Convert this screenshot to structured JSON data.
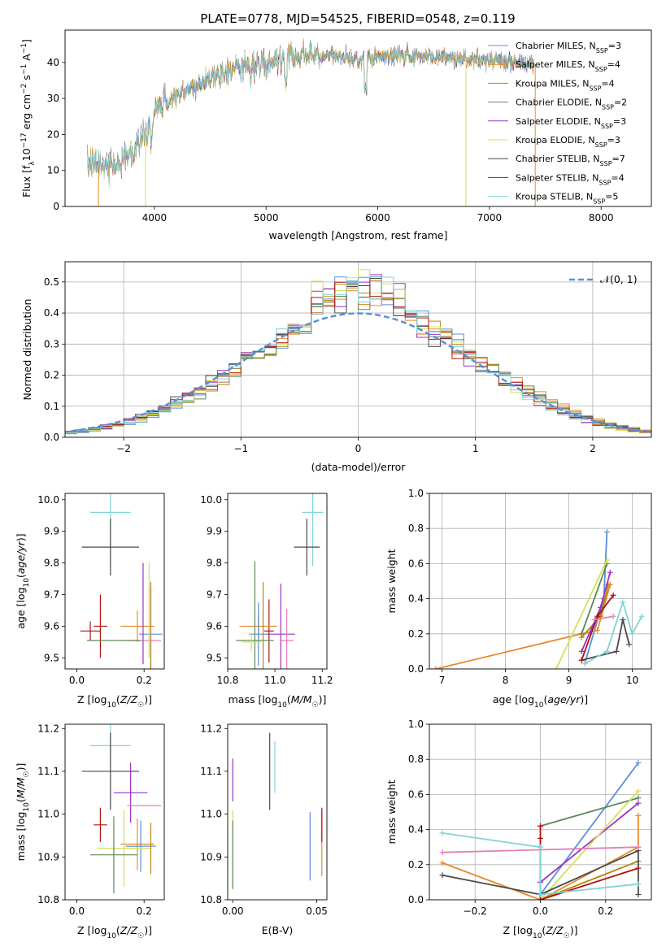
{
  "figure_title": "PLATE=0778, MJD=54525, FIBERID=0548, z=0.119",
  "colors": {
    "Chabrier MILES": "#5b8fd9",
    "Salpeter MILES": "#e8892a",
    "Kroupa MILES": "#b8860b",
    "Chabrier ELODIE": "#5a8a5a",
    "Salpeter ELODIE": "#9b30c8",
    "Kroupa ELODIE": "#d4e05a",
    "Chabrier STELIB": "#4a4a4a",
    "Salpeter STELIB": "#b01010",
    "Kroupa STELIB": "#7fd4d8",
    "pink": "#e47fb8",
    "normal": "#5b8fd9"
  },
  "chart_data": [
    {
      "id": "spectrum",
      "type": "line",
      "xlabel": "wavelength [Angstrom, rest frame]",
      "ylabel": "Flux [f_λ10^-17 erg cm^-2 s^-1 A^-1]",
      "xlim": [
        3200,
        8450
      ],
      "ylim": [
        0,
        49
      ],
      "xticks": [
        4000,
        5000,
        6000,
        7000,
        8000
      ],
      "yticks": [
        0,
        10,
        20,
        30,
        40
      ],
      "grid": false,
      "legend_position": "top-right",
      "legend": [
        {
          "label": "Chabrier MILES, N",
          "sub": "SSP",
          "suffix": "=3"
        },
        {
          "label": "Salpeter MILES, N",
          "sub": "SSP",
          "suffix": "=4"
        },
        {
          "label": "Kroupa MILES, N",
          "sub": "SSP",
          "suffix": "=4"
        },
        {
          "label": "Chabrier ELODIE, N",
          "sub": "SSP",
          "suffix": "=2"
        },
        {
          "label": "Salpeter ELODIE, N",
          "sub": "SSP",
          "suffix": "=3"
        },
        {
          "label": "Kroupa ELODIE, N",
          "sub": "SSP",
          "suffix": "=3"
        },
        {
          "label": "Chabrier STELIB, N",
          "sub": "SSP",
          "suffix": "=7"
        },
        {
          "label": "Salpeter STELIB, N",
          "sub": "SSP",
          "suffix": "=4"
        },
        {
          "label": "Kroupa STELIB, N",
          "sub": "SSP",
          "suffix": "=5"
        }
      ],
      "continuum": {
        "x": [
          3400,
          3600,
          3800,
          3900,
          4000,
          4100,
          4300,
          4500,
          4800,
          5000,
          5200,
          5500,
          5800,
          6000,
          6200,
          6500,
          6800,
          7000,
          7200,
          7400
        ],
        "y": [
          11,
          11.5,
          15,
          20,
          26,
          29,
          32,
          36,
          39,
          40,
          42,
          42,
          41,
          41.5,
          42,
          41.5,
          41,
          40.5,
          40,
          39.5
        ]
      },
      "drops": [
        {
          "series": "Salpeter MILES",
          "x": 3500
        },
        {
          "series": "Kroupa ELODIE",
          "x": 3920
        },
        {
          "series": "Kroupa ELODIE",
          "x": 6790
        },
        {
          "series": "Salpeter MILES",
          "x": 7410
        }
      ]
    },
    {
      "id": "residuals",
      "type": "histogram",
      "xlabel": "(data-model)/error",
      "ylabel": "Normed distribution",
      "xlim": [
        -2.5,
        2.5
      ],
      "ylim": [
        0,
        0.565
      ],
      "xticks": [
        -2,
        -1,
        0,
        1,
        2
      ],
      "yticks": [
        0.0,
        0.1,
        0.2,
        0.3,
        0.4,
        0.5
      ],
      "grid": true,
      "legend_position": "top-right",
      "legend": "𝒩(0, 1)",
      "bin_width": 0.1
    },
    {
      "id": "age_vs_Z",
      "type": "errorbar",
      "xlabel": "Z [log₁₀(Z/Z☉)]",
      "ylabel": "age  [log₁₀(age/yr)]",
      "xlim": [
        -0.035,
        0.26
      ],
      "ylim": [
        9.465,
        10.02
      ],
      "xticks": [
        0.0,
        0.2
      ],
      "yticks": [
        9.5,
        9.6,
        9.7,
        9.8,
        9.9,
        10.0
      ],
      "points": [
        {
          "series": "Kroupa STELIB",
          "x": 0.1,
          "xerr": 0.06,
          "y": 9.96,
          "yerr": 0.17
        },
        {
          "series": "Chabrier STELIB",
          "x": 0.1,
          "xerr": 0.085,
          "y": 9.85,
          "yerr": 0.09
        },
        {
          "series": "Salpeter STELIB",
          "x": 0.07,
          "xerr": 0.02,
          "y": 9.6,
          "yerr": 0.1
        },
        {
          "series": "Salpeter MILES",
          "x": 0.18,
          "xerr": 0.05,
          "y": 9.6,
          "yerr": 0.05
        },
        {
          "series": "Salpeter STELIB",
          "x": 0.04,
          "xerr": 0.03,
          "y": 9.585,
          "yerr": 0.03
        },
        {
          "series": "Chabrier MILES",
          "x": 0.22,
          "xerr": 0.035,
          "y": 9.575,
          "yerr": 0.15
        },
        {
          "series": "pink",
          "x": 0.2,
          "xerr": 0.05,
          "y": 9.555,
          "yerr": 0.0
        },
        {
          "series": "Chabrier ELODIE",
          "x": 0.11,
          "xerr": 0.08,
          "y": 9.555,
          "yerr": 0.0
        },
        {
          "series": "Salpeter ELODIE",
          "x": 0.197,
          "xerr": 0.0,
          "y": 9.64,
          "yerr": 0.16
        },
        {
          "series": "Kroupa ELODIE",
          "x": 0.215,
          "xerr": 0.0,
          "y": 9.65,
          "yerr": 0.15
        },
        {
          "series": "Kroupa MILES",
          "x": 0.22,
          "xerr": 0.0,
          "y": 9.6,
          "yerr": 0.14
        }
      ]
    },
    {
      "id": "age_vs_mass",
      "type": "errorbar",
      "xlabel": "mass [log₁₀(M/M☉)]",
      "ylabel": "",
      "xlim": [
        10.8,
        11.22
      ],
      "ylim": [
        9.465,
        10.02
      ],
      "xticks": [
        10.8,
        11.0,
        11.2
      ],
      "yticks": [
        9.5,
        9.6,
        9.7,
        9.8,
        9.9,
        10.0
      ],
      "points": [
        {
          "series": "Kroupa STELIB",
          "x": 11.16,
          "xerr": 0.045,
          "y": 9.96,
          "yerr": 0.17
        },
        {
          "series": "Chabrier STELIB",
          "x": 11.135,
          "xerr": 0.055,
          "y": 9.85,
          "yerr": 0.09
        },
        {
          "series": "Salpeter STELIB",
          "x": 10.975,
          "xerr": 0.02,
          "y": 9.585,
          "yerr": 0.1
        },
        {
          "series": "Salpeter MILES",
          "x": 10.93,
          "xerr": 0.08,
          "y": 9.6,
          "yerr": 0.04
        },
        {
          "series": "Chabrier MILES",
          "x": 10.93,
          "xerr": 0.04,
          "y": 9.575,
          "yerr": 0.1
        },
        {
          "series": "Salpeter ELODIE",
          "x": 11.025,
          "xerr": 0.06,
          "y": 9.575,
          "yerr": 0.16
        },
        {
          "series": "pink",
          "x": 11.05,
          "xerr": 0.03,
          "y": 9.555,
          "yerr": 0.1
        },
        {
          "series": "Chabrier ELODIE",
          "x": 10.915,
          "xerr": 0.08,
          "y": 9.555,
          "yerr": 0.25
        },
        {
          "series": "Kroupa ELODIE",
          "x": 10.9,
          "xerr": 0.04,
          "y": 9.55,
          "yerr": 0.03
        },
        {
          "series": "Kroupa MILES",
          "x": 10.95,
          "xerr": 0.0,
          "y": 9.6,
          "yerr": 0.14
        }
      ]
    },
    {
      "id": "weight_vs_age",
      "type": "line",
      "xlabel": "age  [log₁₀(age/yr)]",
      "ylabel": "mass weight",
      "xlim": [
        6.8,
        10.3
      ],
      "ylim": [
        0,
        1.0
      ],
      "xticks": [
        7,
        8,
        9,
        10
      ],
      "yticks": [
        0.0,
        0.2,
        0.4,
        0.6,
        0.8,
        1.0
      ],
      "grid": true,
      "series": [
        {
          "name": "Chabrier MILES",
          "x": [
            9.25,
            9.55,
            9.6
          ],
          "y": [
            0.03,
            0.4,
            0.78
          ]
        },
        {
          "name": "Salpeter MILES",
          "x": [
            6.9,
            9.2,
            9.45,
            9.65
          ],
          "y": [
            0.0,
            0.2,
            0.22,
            0.48
          ]
        },
        {
          "name": "Kroupa MILES",
          "x": [
            9.2,
            9.5,
            9.62
          ],
          "y": [
            0.18,
            0.3,
            0.48
          ]
        },
        {
          "name": "Chabrier ELODIE",
          "x": [
            9.2,
            9.6
          ],
          "y": [
            0.2,
            0.6
          ]
        },
        {
          "name": "Salpeter ELODIE",
          "x": [
            9.2,
            9.5,
            9.65
          ],
          "y": [
            0.1,
            0.35,
            0.55
          ]
        },
        {
          "name": "Kroupa ELODIE",
          "x": [
            8.8,
            9.6
          ],
          "y": [
            0.0,
            0.62
          ]
        },
        {
          "name": "Chabrier STELIB",
          "x": [
            9.2,
            9.75,
            9.85,
            9.95
          ],
          "y": [
            0.05,
            0.1,
            0.28,
            0.14
          ]
        },
        {
          "name": "Salpeter STELIB",
          "x": [
            9.2,
            9.45,
            9.7
          ],
          "y": [
            0.05,
            0.3,
            0.42
          ]
        },
        {
          "name": "Kroupa STELIB",
          "x": [
            9.25,
            9.6,
            9.85,
            10.0,
            10.15
          ],
          "y": [
            0.03,
            0.1,
            0.38,
            0.2,
            0.3
          ]
        },
        {
          "name": "pink",
          "x": [
            9.4,
            9.7
          ],
          "y": [
            0.28,
            0.3
          ]
        }
      ]
    },
    {
      "id": "mass_vs_Z",
      "type": "errorbar",
      "xlabel": "Z [log₁₀(Z/Z☉)]",
      "ylabel": "mass [log₁₀(M/M☉)]",
      "xlim": [
        -0.035,
        0.26
      ],
      "ylim": [
        10.8,
        11.21
      ],
      "xticks": [
        0.0,
        0.2
      ],
      "yticks": [
        10.8,
        10.9,
        11.0,
        11.1,
        11.2
      ],
      "points": [
        {
          "series": "Kroupa STELIB",
          "x": 0.1,
          "xerr": 0.06,
          "y": 11.16,
          "yerr": 0.05
        },
        {
          "series": "Chabrier STELIB",
          "x": 0.1,
          "xerr": 0.085,
          "y": 11.1,
          "yerr": 0.09
        },
        {
          "series": "Salpeter ELODIE",
          "x": 0.16,
          "xerr": 0.05,
          "y": 11.05,
          "yerr": 0.07
        },
        {
          "series": "pink",
          "x": 0.2,
          "xerr": 0.05,
          "y": 11.02,
          "yerr": 0.0
        },
        {
          "series": "Salpeter STELIB",
          "x": 0.07,
          "xerr": 0.02,
          "y": 10.975,
          "yerr": 0.04
        },
        {
          "series": "Salpeter MILES",
          "x": 0.18,
          "xerr": 0.05,
          "y": 10.93,
          "yerr": 0.06
        },
        {
          "series": "Chabrier MILES",
          "x": 0.19,
          "xerr": 0.045,
          "y": 10.925,
          "yerr": 0.06
        },
        {
          "series": "Kroupa ELODIE",
          "x": 0.14,
          "xerr": 0.08,
          "y": 10.92,
          "yerr": 0.09
        },
        {
          "series": "Chabrier ELODIE",
          "x": 0.11,
          "xerr": 0.07,
          "y": 10.905,
          "yerr": 0.09
        },
        {
          "series": "Kroupa MILES",
          "x": 0.22,
          "xerr": 0.0,
          "y": 10.92,
          "yerr": 0.06
        }
      ]
    },
    {
      "id": "mass_vs_ebv",
      "type": "errorbar",
      "xlabel": "E(B-V)",
      "ylabel": "",
      "xlim": [
        -0.003,
        0.056
      ],
      "ylim": [
        10.8,
        11.21
      ],
      "xticks": [
        0.0,
        0.05
      ],
      "yticks": [
        10.8,
        10.9,
        11.0,
        11.1,
        11.2
      ],
      "points": [
        {
          "series": "Salpeter ELODIE",
          "x": 0.0,
          "xerr": 0.0,
          "y": 11.08,
          "yerr": 0.05
        },
        {
          "series": "Kroupa ELODIE",
          "x": 0.0,
          "xerr": 0.0,
          "y": 10.92,
          "yerr": 0.09
        },
        {
          "series": "Chabrier ELODIE",
          "x": 0.0,
          "xerr": 0.0,
          "y": 10.905,
          "yerr": 0.08
        },
        {
          "series": "Chabrier STELIB",
          "x": 0.022,
          "xerr": 0.0,
          "y": 11.1,
          "yerr": 0.09
        },
        {
          "series": "Kroupa STELIB",
          "x": 0.025,
          "xerr": 0.0,
          "y": 11.11,
          "yerr": 0.06
        },
        {
          "series": "Chabrier MILES",
          "x": 0.046,
          "xerr": 0.0,
          "y": 10.925,
          "yerr": 0.08
        },
        {
          "series": "Salpeter MILES",
          "x": 0.053,
          "xerr": 0.0,
          "y": 10.93,
          "yerr": 0.075
        },
        {
          "series": "Salpeter STELIB",
          "x": 0.053,
          "xerr": 0.0,
          "y": 10.975,
          "yerr": 0.04
        }
      ]
    },
    {
      "id": "weight_vs_Z",
      "type": "line",
      "xlabel": "Z [log₁₀(Z/Z☉)]",
      "ylabel": "mass weight",
      "xlim": [
        -0.34,
        0.34
      ],
      "ylim": [
        0,
        1.0
      ],
      "xticks": [
        -0.2,
        0.0,
        0.2
      ],
      "yticks": [
        0.0,
        0.2,
        0.4,
        0.6,
        0.8,
        1.0
      ],
      "grid": true,
      "series": [
        {
          "name": "Chabrier MILES",
          "x": [
            0.0,
            0.0,
            0.3
          ],
          "y": [
            0.1,
            0.03,
            0.78
          ]
        },
        {
          "name": "Salpeter MILES",
          "x": [
            -0.3,
            0.0,
            0.3,
            0.3
          ],
          "y": [
            0.21,
            0.0,
            0.3,
            0.48
          ]
        },
        {
          "name": "Kroupa MILES",
          "x": [
            0.0,
            0.3
          ],
          "y": [
            0.0,
            0.22
          ]
        },
        {
          "name": "Chabrier ELODIE",
          "x": [
            0.0,
            0.3
          ],
          "y": [
            0.42,
            0.58
          ]
        },
        {
          "name": "Salpeter ELODIE",
          "x": [
            0.0,
            0.3
          ],
          "y": [
            0.1,
            0.55
          ]
        },
        {
          "name": "Kroupa ELODIE",
          "x": [
            0.0,
            0.3
          ],
          "y": [
            0.0,
            0.62
          ]
        },
        {
          "name": "Chabrier STELIB",
          "x": [
            -0.3,
            0.0,
            0.3,
            0.3
          ],
          "y": [
            0.14,
            0.03,
            0.28,
            0.03
          ]
        },
        {
          "name": "Salpeter STELIB",
          "x": [
            0.0,
            0.0,
            0.0,
            0.3
          ],
          "y": [
            0.42,
            0.35,
            0.0,
            0.18
          ]
        },
        {
          "name": "Kroupa STELIB",
          "x": [
            -0.3,
            0.0,
            0.0,
            0.3
          ],
          "y": [
            0.38,
            0.3,
            0.03,
            0.09
          ]
        },
        {
          "name": "pink",
          "x": [
            -0.3,
            0.3
          ],
          "y": [
            0.27,
            0.3
          ]
        }
      ]
    }
  ]
}
